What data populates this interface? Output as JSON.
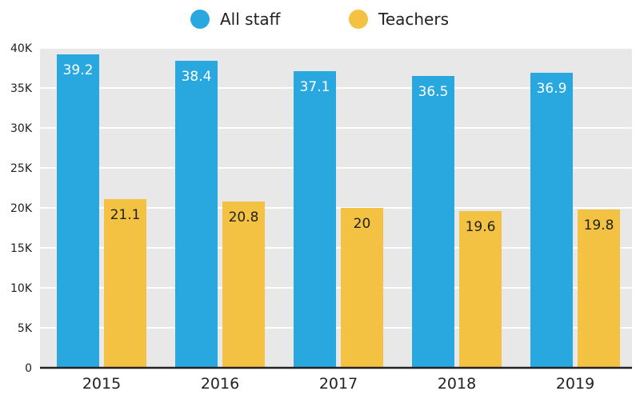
{
  "chart_data": {
    "type": "bar",
    "title": "",
    "xlabel": "",
    "ylabel": "",
    "categories": [
      "2015",
      "2016",
      "2017",
      "2018",
      "2019"
    ],
    "series": [
      {
        "name": "All staff",
        "values": [
          39.2,
          38.4,
          37.1,
          36.5,
          36.9
        ],
        "labels": [
          "39.2",
          "38.4",
          "37.1",
          "36.5",
          "36.9"
        ],
        "color": "#29a8e0",
        "label_color": "#ffffff"
      },
      {
        "name": "Teachers",
        "values": [
          21.1,
          20.8,
          20,
          19.6,
          19.8
        ],
        "labels": [
          "21.1",
          "20.8",
          "20",
          "19.6",
          "19.8"
        ],
        "color": "#f4c242",
        "label_color": "#222222"
      }
    ],
    "ylim": [
      0,
      40
    ],
    "yticks": [
      0,
      5,
      10,
      15,
      20,
      25,
      30,
      35,
      40
    ],
    "ytick_labels": [
      "0",
      "5K",
      "10K",
      "15K",
      "20K",
      "25K",
      "30K",
      "35K",
      "40K"
    ],
    "grid": true,
    "legend_position": "top-center",
    "background": "#e8e8e8"
  }
}
